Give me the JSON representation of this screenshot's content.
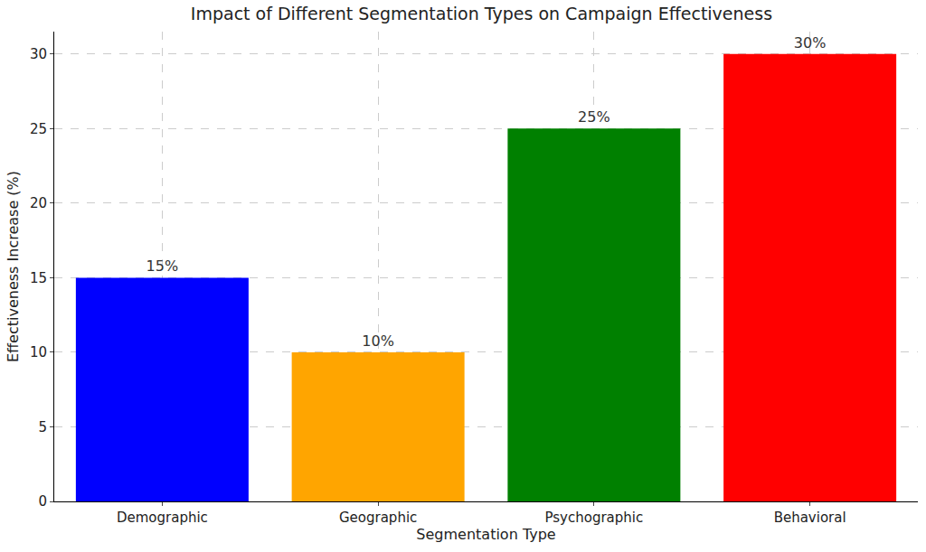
{
  "chart_data": {
    "type": "bar",
    "title": "Impact of Different Segmentation Types on Campaign Effectiveness",
    "x_label": "Segmentation Type",
    "y_label": "Effectiveness Increase (%)",
    "categories": [
      "Demographic",
      "Geographic",
      "Psychographic",
      "Behavioral"
    ],
    "values": [
      15,
      10,
      25,
      30
    ],
    "value_labels": [
      "15%",
      "10%",
      "25%",
      "30%"
    ],
    "colors": [
      "#0000ff",
      "#ffa500",
      "#008000",
      "#ff0000"
    ],
    "ylim": [
      0,
      31.5
    ],
    "yticks": [
      0,
      5,
      10,
      15,
      20,
      25,
      30
    ],
    "grid": true,
    "data_labels": true
  }
}
